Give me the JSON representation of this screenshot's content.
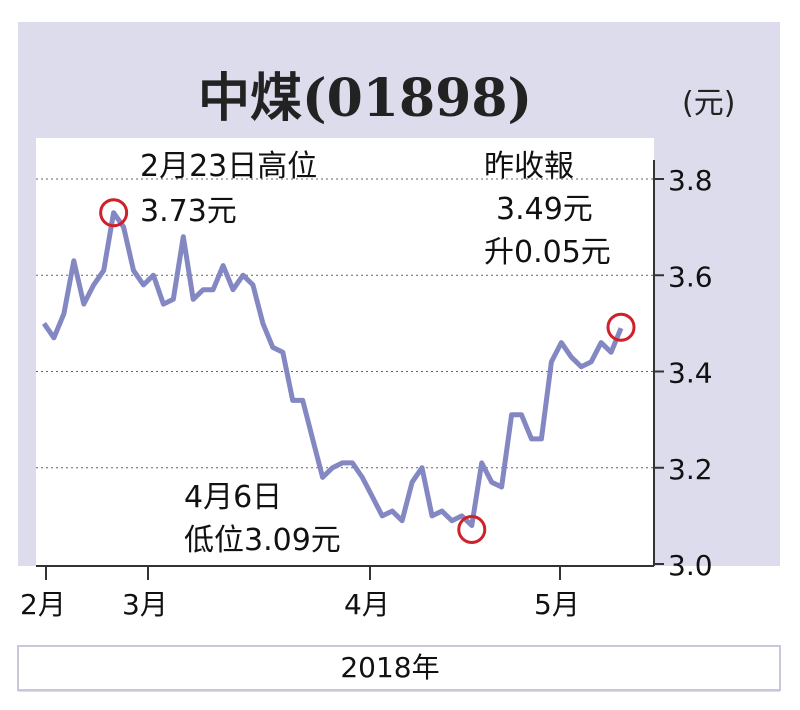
{
  "chart_data": {
    "type": "line",
    "title": "中煤(01898)",
    "unit_label": "(元)",
    "xlabel": "2018年",
    "ylim": [
      3.0,
      3.85
    ],
    "y_ticks": [
      "3.8",
      "3.6",
      "3.4",
      "3.2",
      "3.0"
    ],
    "x_ticks": [
      "2月",
      "3月",
      "4月",
      "5月"
    ],
    "grid": true,
    "series_color": "#8387c2",
    "marker_color": "#d0202a",
    "series": [
      {
        "values": [
          3.5,
          3.47,
          3.52,
          3.63,
          3.54,
          3.58,
          3.61,
          3.73,
          3.7,
          3.61,
          3.58,
          3.6,
          3.54,
          3.55,
          3.68,
          3.55,
          3.57,
          3.57,
          3.62,
          3.57,
          3.6,
          3.58,
          3.5,
          3.45,
          3.44,
          3.34,
          3.34,
          3.26,
          3.18,
          3.2,
          3.21,
          3.21,
          3.18,
          3.14,
          3.1,
          3.11,
          3.09,
          3.17,
          3.2,
          3.1,
          3.11,
          3.09,
          3.1,
          3.08,
          3.21,
          3.17,
          3.16,
          3.31,
          3.31,
          3.26,
          3.26,
          3.42,
          3.46,
          3.43,
          3.41,
          3.42,
          3.46,
          3.44,
          3.49
        ]
      }
    ],
    "annotations": {
      "high": {
        "lines": [
          "2月23日高位",
          "3.73元"
        ],
        "value": 3.73
      },
      "low": {
        "lines": [
          "4月6日",
          "低位3.09元"
        ],
        "value": 3.09
      },
      "close": {
        "lines": [
          "昨收報",
          "3.49元",
          "升0.05元"
        ],
        "value": 3.49
      }
    }
  }
}
